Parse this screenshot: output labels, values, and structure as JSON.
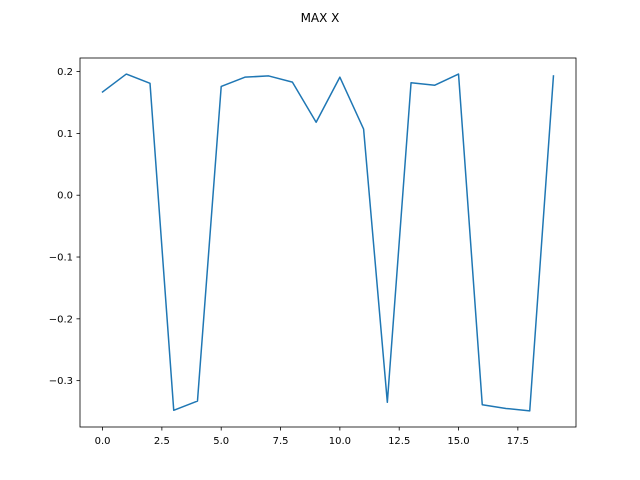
{
  "chart_data": {
    "type": "line",
    "title": "MAX X",
    "xlabel": "",
    "ylabel": "",
    "xlim": [
      -0.95,
      19.95
    ],
    "ylim": [
      -0.375,
      0.222
    ],
    "xticks": [
      0.0,
      2.5,
      5.0,
      7.5,
      10.0,
      12.5,
      15.0,
      17.5
    ],
    "xtick_labels": [
      "0.0",
      "2.5",
      "5.0",
      "7.5",
      "10.0",
      "12.5",
      "15.0",
      "17.5"
    ],
    "yticks": [
      0.2,
      0.1,
      0.0,
      -0.1,
      -0.2,
      -0.3
    ],
    "ytick_labels": [
      "0.2",
      "0.1",
      "0.0",
      "−0.1",
      "−0.2",
      "−0.3"
    ],
    "grid": false,
    "series": [
      {
        "color": "#1f77b4",
        "x": [
          0,
          1,
          2,
          3,
          4,
          5,
          6,
          7,
          8,
          9,
          10,
          11,
          12,
          13,
          14,
          15,
          16,
          17,
          18,
          19
        ],
        "values": [
          0.167,
          0.196,
          0.181,
          -0.348,
          -0.333,
          0.176,
          0.191,
          0.193,
          0.183,
          0.118,
          0.191,
          0.107,
          -0.335,
          0.182,
          0.178,
          0.196,
          -0.339,
          -0.345,
          -0.349,
          0.193
        ]
      }
    ]
  }
}
